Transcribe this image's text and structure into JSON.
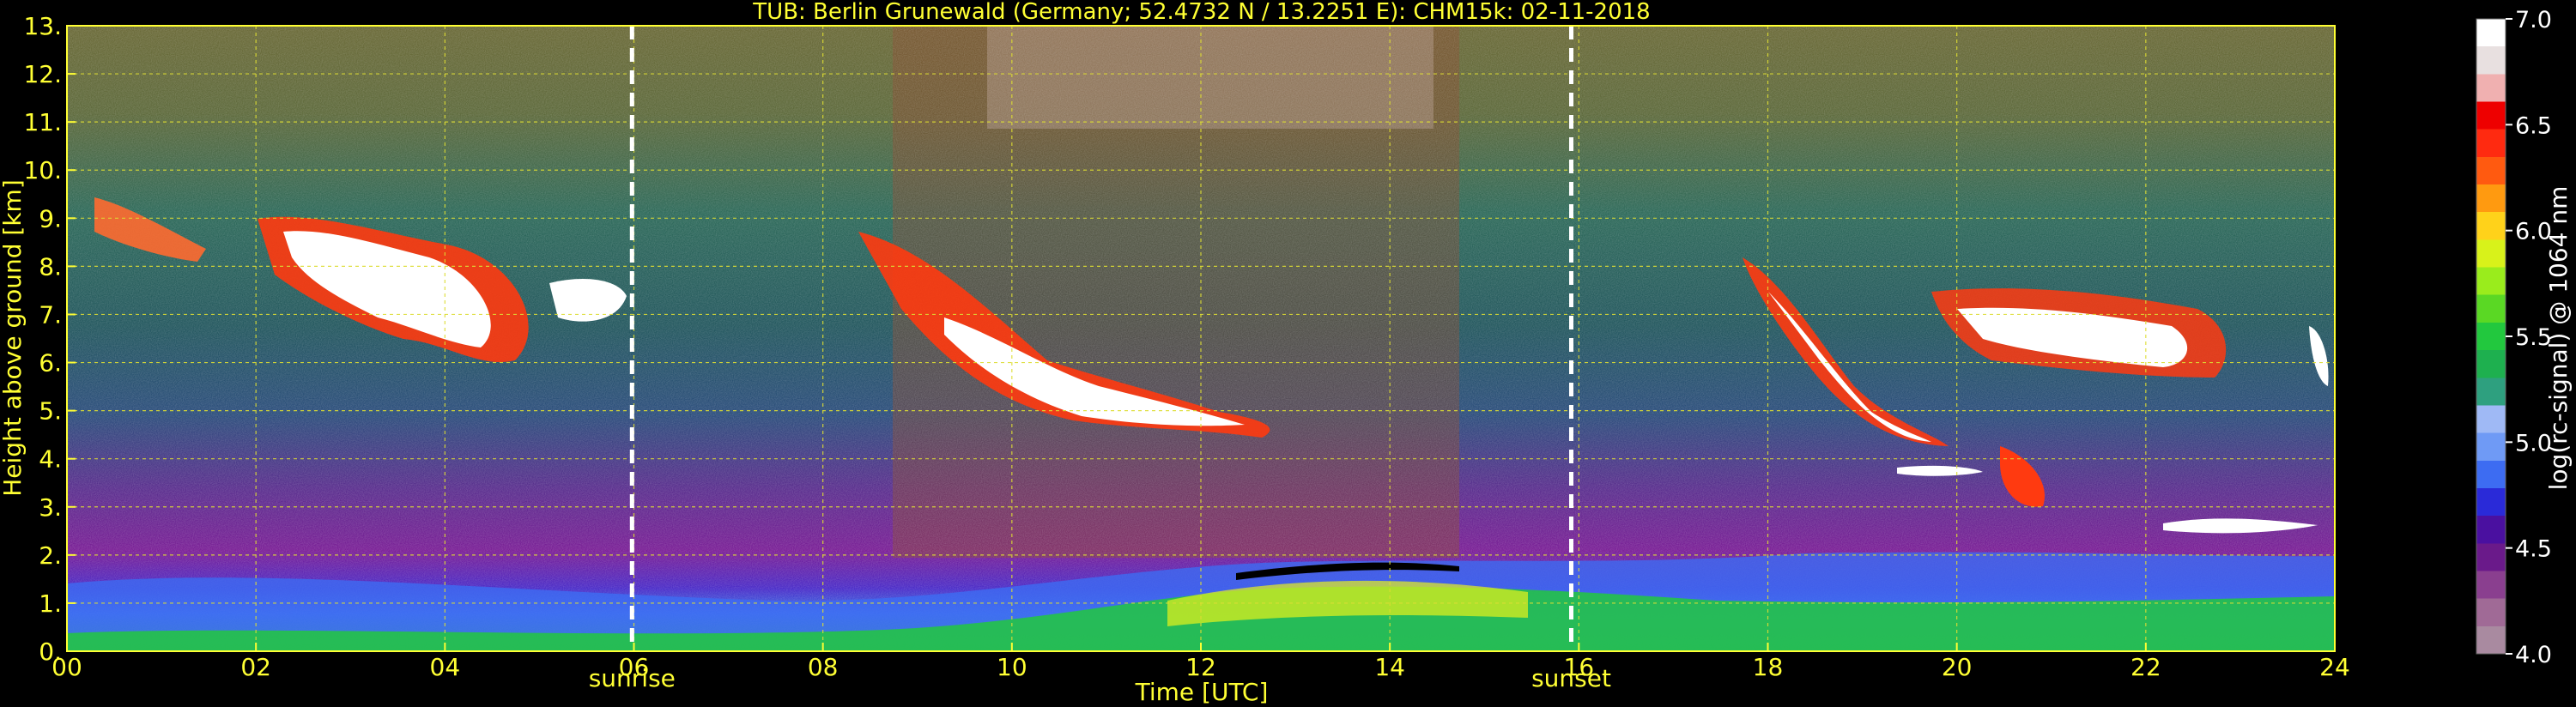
{
  "chart_data": {
    "type": "heatmap",
    "title": "TUB: Berlin Grunewald (Germany; 52.4732 N / 13.2251 E):    CHM15k: 02-11-2018",
    "xlabel": "Time [UTC]",
    "ylabel": "Height above ground [km]",
    "colorbar_label": "log(rc-signal) @ 1064 nm",
    "xlim": [
      0,
      24
    ],
    "ylim": [
      0,
      13
    ],
    "x_ticks": [
      0,
      2,
      4,
      6,
      8,
      10,
      12,
      14,
      16,
      18,
      20,
      22,
      24
    ],
    "x_tick_labels": [
      "00",
      "02",
      "04",
      "06",
      "08",
      "10",
      "12",
      "14",
      "16",
      "18",
      "20",
      "22",
      "24"
    ],
    "y_ticks": [
      0,
      1,
      2,
      3,
      4,
      5,
      6,
      7,
      8,
      9,
      10,
      11,
      12,
      13
    ],
    "y_tick_labels": [
      "0.",
      "1.",
      "2.",
      "3.",
      "4.",
      "5.",
      "6.",
      "7.",
      "8.",
      "9.",
      "10.",
      "11.",
      "12.",
      "13."
    ],
    "grid": true,
    "colorbar_range": [
      4.0,
      7.0
    ],
    "colorbar_ticks": [
      4.0,
      4.5,
      5.0,
      5.5,
      6.0,
      6.5,
      7.0
    ],
    "colorbar_tick_labels": [
      "4.0",
      "4.5",
      "5.0",
      "5.5",
      "6.0",
      "6.5",
      "7.0"
    ],
    "colorbar_colors": [
      "#a98aa0",
      "#a06a96",
      "#8a3f8f",
      "#6a1a8a",
      "#4a10a0",
      "#2a2ad8",
      "#3d6cf2",
      "#6f9af5",
      "#9fb9f5",
      "#2ea07f",
      "#1eb04f",
      "#22c83e",
      "#5ad824",
      "#9aec1c",
      "#d8f21a",
      "#ffd21a",
      "#ff9a10",
      "#ff5a10",
      "#ff2a10",
      "#ee0000",
      "#f0b0b0",
      "#e8e0e0",
      "#ffffff"
    ],
    "markers": [
      {
        "label": "sunrise",
        "x": 5.98
      },
      {
        "label": "sunset",
        "x": 15.92
      }
    ],
    "annotations": [
      "sunrise",
      "sunset"
    ],
    "colors": {
      "text": "#ffff33",
      "grid": "#dddd33",
      "background": "#000000",
      "marker": "#ffffff"
    }
  }
}
